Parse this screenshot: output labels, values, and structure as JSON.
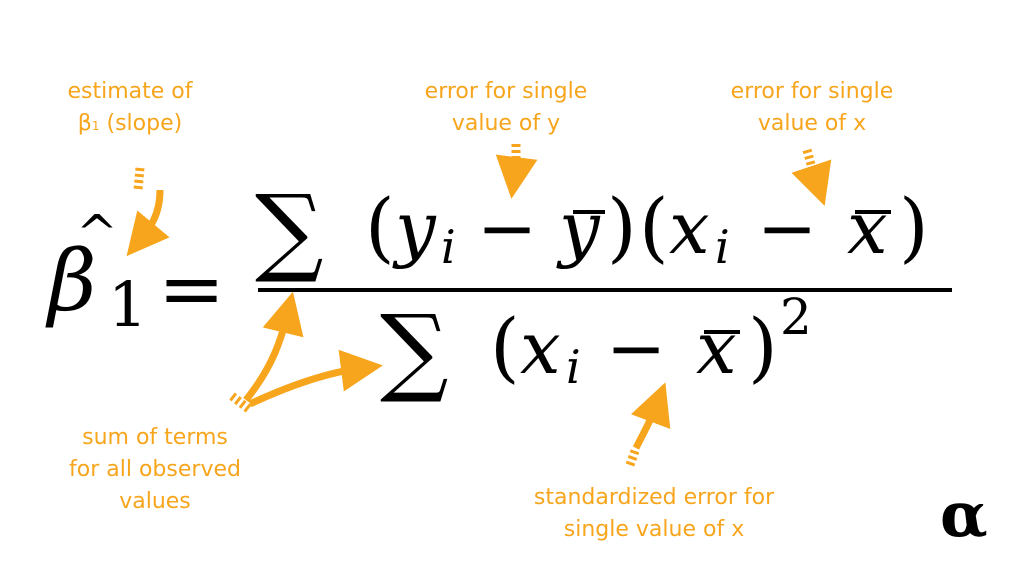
{
  "colors": {
    "annotation": "#F7A51C",
    "formula": "#000000"
  },
  "formula": {
    "lhs_symbol": "β",
    "lhs_hat": "^",
    "lhs_subscript": "1",
    "equals": "=",
    "sum": "∑",
    "numerator_y": "y",
    "numerator_i1": "i",
    "minus": "−",
    "numerator_ybar": "y",
    "numerator_x": "x",
    "numerator_i2": "i",
    "numerator_xbar": "x",
    "denominator_x": "x",
    "denominator_i": "i",
    "denominator_xbar": "x",
    "power": "2",
    "open_paren": "(",
    "close_paren": ")"
  },
  "annotations": {
    "estimate_line1": "estimate of",
    "estimate_beta": "β",
    "estimate_sub": "1",
    "estimate_slope": "(slope)",
    "error_y_line1": "error for single",
    "error_y_line2": "value of y",
    "error_x_line1": "error for single",
    "error_x_line2": "value of x",
    "sum_line1": "sum of terms",
    "sum_line2": "for all observed",
    "sum_line3": "values",
    "std_line1": "standardized error for",
    "std_line2": "single value of x"
  },
  "logo": "α"
}
